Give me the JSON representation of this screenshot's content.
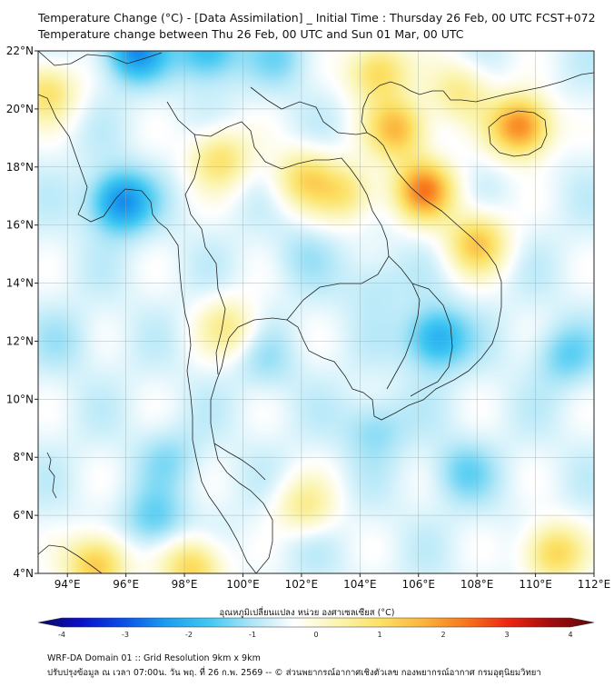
{
  "title_line1": "Temperature Change (°C) - [Data Assimilation] _ Initial Time : Thursday 26 Feb, 00 UTC FCST+072",
  "title_line2": "Temperature change between Thu 26 Feb, 00 UTC and Sun 01 Mar, 00 UTC",
  "map": {
    "lon_range": [
      93,
      112
    ],
    "lat_range": [
      4,
      22
    ],
    "lon_ticks": [
      "94°E",
      "96°E",
      "98°E",
      "100°E",
      "102°E",
      "104°E",
      "106°E",
      "108°E",
      "110°E",
      "112°E"
    ],
    "lat_ticks": [
      "4°N",
      "6°N",
      "8°N",
      "10°N",
      "12°N",
      "14°N",
      "16°N",
      "18°N",
      "20°N",
      "22°N"
    ],
    "lon_tick_values": [
      94,
      96,
      98,
      100,
      102,
      104,
      106,
      108,
      110,
      112
    ],
    "lat_tick_values": [
      4,
      6,
      8,
      10,
      12,
      14,
      16,
      18,
      20,
      22
    ],
    "field_hotspots": [
      {
        "lon": 95.8,
        "lat": 16.8,
        "value": -2.6
      },
      {
        "lon": 96.3,
        "lat": 22.0,
        "value": -2.4
      },
      {
        "lon": 98.8,
        "lat": 22.0,
        "value": -2.0
      },
      {
        "lon": 101.3,
        "lat": 21.8,
        "value": -1.2
      },
      {
        "lon": 106.6,
        "lat": 12.1,
        "value": -2.2
      },
      {
        "lon": 104.5,
        "lat": 14.0,
        "value": -1.0
      },
      {
        "lon": 102.0,
        "lat": 15.0,
        "value": -0.9
      },
      {
        "lon": 100.8,
        "lat": 11.3,
        "value": -1.0
      },
      {
        "lon": 104.5,
        "lat": 9.0,
        "value": -1.3
      },
      {
        "lon": 97.5,
        "lat": 8.0,
        "value": -1.1
      },
      {
        "lon": 107.5,
        "lat": 7.5,
        "value": -1.3
      },
      {
        "lon": 111.0,
        "lat": 11.5,
        "value": -1.4
      },
      {
        "lon": 94.0,
        "lat": 12.0,
        "value": -0.9
      },
      {
        "lon": 97.0,
        "lat": 5.8,
        "value": -1.5
      },
      {
        "lon": 102.0,
        "lat": 5.5,
        "value": -0.9
      },
      {
        "lon": 106.2,
        "lat": 17.2,
        "value": 2.2
      },
      {
        "lon": 105.3,
        "lat": 19.3,
        "value": 1.6
      },
      {
        "lon": 109.5,
        "lat": 19.4,
        "value": 2.4
      },
      {
        "lon": 104.6,
        "lat": 21.3,
        "value": 1.3
      },
      {
        "lon": 108.0,
        "lat": 15.4,
        "value": 1.4
      },
      {
        "lon": 99.2,
        "lat": 18.3,
        "value": 1.0
      },
      {
        "lon": 102.1,
        "lat": 17.6,
        "value": 1.0
      },
      {
        "lon": 95.0,
        "lat": 4.3,
        "value": 1.6
      },
      {
        "lon": 98.3,
        "lat": 4.2,
        "value": 1.3
      },
      {
        "lon": 110.6,
        "lat": 4.7,
        "value": 1.3
      },
      {
        "lon": 102.1,
        "lat": 6.2,
        "value": 0.8
      },
      {
        "lon": 99.5,
        "lat": 12.5,
        "value": 0.6
      },
      {
        "lon": 103.6,
        "lat": 17.1,
        "value": 0.8
      },
      {
        "lon": 93.3,
        "lat": 20.6,
        "value": 1.0
      },
      {
        "lon": 107.4,
        "lat": 20.6,
        "value": 0.7
      }
    ]
  },
  "colorbar": {
    "label": "อุณหภูมิเปลี่ยนแปลง หน่วย องศาเซลเซียส (°C)",
    "min": -4,
    "max": 4,
    "tick_values": [
      -4,
      -3,
      -2,
      -1,
      0,
      1,
      2,
      3,
      4
    ],
    "tick_labels": [
      "-4",
      "-3",
      "-2",
      "-1",
      "0",
      "1",
      "2",
      "3",
      "4"
    ],
    "colors": [
      "#08085e",
      "#0a10c8",
      "#0b4fe8",
      "#1a9ef0",
      "#40c8f2",
      "#aee6f7",
      "#ffffff",
      "#fbf5b0",
      "#fce164",
      "#fcb43c",
      "#f8761c",
      "#ec2512",
      "#a30c0c",
      "#5c0808"
    ]
  },
  "footer_line1": "WRF-DA Domain 01 :: Grid Resolution 9km x 9km",
  "footer_line2": "ปรับปรุงข้อมูล ณ เวลา 07:00น. วัน พฤ. ที่ 26 ก.พ. 2569 -- © ส่วนพยากรณ์อากาศเชิงตัวเลข กองพยากรณ์อากาศ กรมอุตุนิยมวิทยา"
}
